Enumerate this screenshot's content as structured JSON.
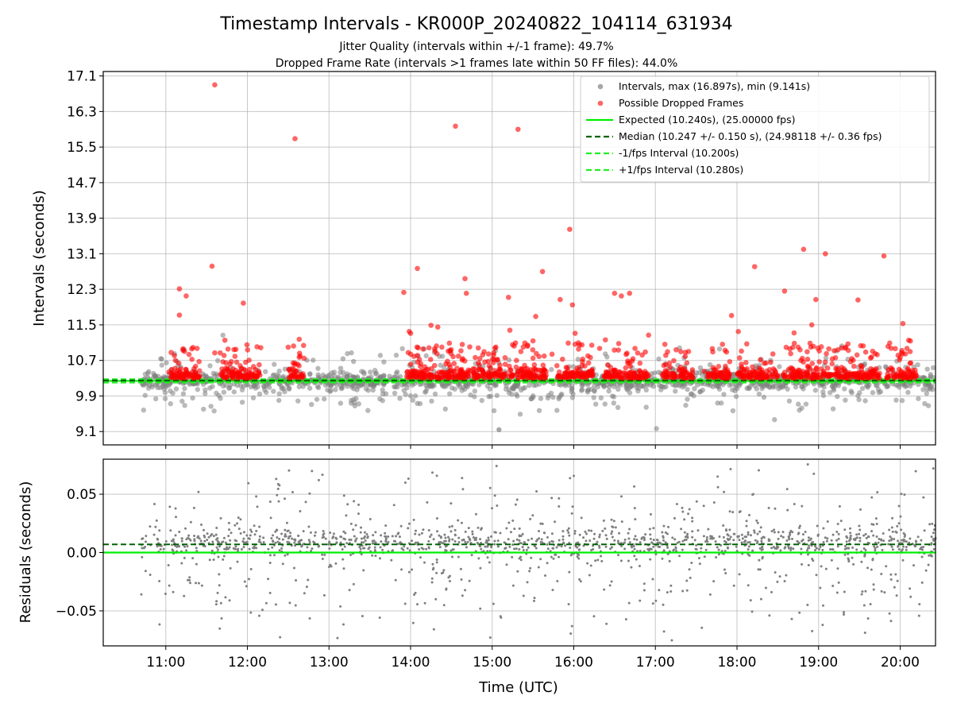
{
  "title": "Timestamp Intervals - KR000P_20240822_104114_631934",
  "subtitle_1": "Jitter Quality (intervals within +/-1 frame): 49.7%",
  "subtitle_2": "Dropped Frame Rate (intervals >1 frames late within 50 FF files): 44.0%",
  "colors": {
    "intervals": "#808080",
    "dropped": "#ff0000",
    "expected": "#00ee00",
    "median": "#006400",
    "fps_bounds": "#22ee22",
    "grid": "#b0b0b0"
  },
  "chart_data": [
    {
      "type": "scatter",
      "panel": "top",
      "ylabel": "Intervals (seconds)",
      "ylim": [
        8.8,
        17.2
      ],
      "yticks": [
        "9.1",
        "9.9",
        "10.7",
        "11.5",
        "12.3",
        "13.1",
        "13.9",
        "14.7",
        "15.5",
        "16.3",
        "17.1"
      ],
      "xlim": [
        "10:14",
        "20:26"
      ],
      "grid": true,
      "legend_placement": "top-right",
      "legend": [
        "Intervals, max (16.897s), min (9.141s)",
        "Possible Dropped Frames",
        "Expected (10.240s), (25.00000 fps)",
        "Median (10.247 +/- 0.150 s), (24.98118 +/- 0.36 fps)",
        "-1/fps Interval (10.200s)",
        "+1/fps Interval (10.280s)"
      ],
      "reference_lines": {
        "expected": 10.24,
        "median": 10.247,
        "minus_1_fps": 10.2,
        "plus_1_fps": 10.28
      },
      "data_range": {
        "start": "10:42",
        "end": "20:26"
      },
      "series": [
        {
          "name": "Intervals, max (16.897s), min (9.141s)",
          "max": 16.897,
          "min": 9.141,
          "distribution": "dense band mostly between 9.4 and 11.0 s"
        },
        {
          "name": "Possible Dropped Frames",
          "points": [
            [
              "11:10",
              11.72
            ],
            [
              "11:10",
              12.31
            ],
            [
              "11:15",
              12.15
            ],
            [
              "11:20",
              10.99
            ],
            [
              "11:23",
              10.97
            ],
            [
              "11:34",
              12.82
            ],
            [
              "11:36",
              10.87
            ],
            [
              "11:40",
              10.87
            ],
            [
              "11:42",
              10.67
            ],
            [
              "11:42",
              10.34
            ],
            [
              "11:36",
              16.9
            ],
            [
              "11:57",
              11.99
            ],
            [
              "12:35",
              15.69
            ],
            [
              "13:55",
              12.23
            ],
            [
              "13:59",
              11.35
            ],
            [
              "14:00",
              11.31
            ],
            [
              "14:05",
              12.77
            ],
            [
              "14:15",
              11.49
            ],
            [
              "14:20",
              11.45
            ],
            [
              "14:23",
              11.0
            ],
            [
              "14:32",
              10.63
            ],
            [
              "14:38",
              10.71
            ],
            [
              "14:33",
              15.97
            ],
            [
              "14:38",
              11.06
            ],
            [
              "14:40",
              12.54
            ],
            [
              "14:41",
              12.21
            ],
            [
              "15:12",
              12.12
            ],
            [
              "15:13",
              11.38
            ],
            [
              "15:19",
              15.9
            ],
            [
              "15:26",
              11.02
            ],
            [
              "15:30",
              11.14
            ],
            [
              "15:37",
              12.7
            ],
            [
              "15:32",
              11.69
            ],
            [
              "15:44",
              10.84
            ],
            [
              "15:50",
              12.07
            ],
            [
              "15:57",
              13.65
            ],
            [
              "15:59",
              11.95
            ],
            [
              "16:01",
              11.31
            ],
            [
              "16:06",
              11.05
            ],
            [
              "16:19",
              10.97
            ],
            [
              "16:30",
              12.21
            ],
            [
              "16:35",
              12.15
            ],
            [
              "16:41",
              12.21
            ],
            [
              "16:45",
              10.97
            ],
            [
              "16:55",
              11.27
            ],
            [
              "17:56",
              11.71
            ],
            [
              "18:01",
              11.35
            ],
            [
              "18:13",
              12.81
            ],
            [
              "18:35",
              12.26
            ],
            [
              "18:42",
              11.32
            ],
            [
              "18:45",
              11.0
            ],
            [
              "18:47",
              10.7
            ],
            [
              "18:49",
              13.2
            ],
            [
              "18:55",
              11.5
            ],
            [
              "18:58",
              12.07
            ],
            [
              "19:05",
              13.1
            ],
            [
              "19:20",
              11.0
            ],
            [
              "19:31",
              11.03
            ],
            [
              "19:29",
              12.06
            ],
            [
              "19:48",
              13.05
            ],
            [
              "20:00",
              10.77
            ],
            [
              "20:02",
              11.53
            ],
            [
              "20:05",
              10.97
            ]
          ]
        }
      ]
    },
    {
      "type": "scatter",
      "panel": "bottom",
      "ylabel": "Residuals (seconds)",
      "xlabel": "Time (UTC)",
      "ylim": [
        -0.08,
        0.08
      ],
      "yticks": [
        "−0.05",
        "0.00",
        "0.05"
      ],
      "xlim": [
        "10:14",
        "20:26"
      ],
      "xticks": [
        "11:00",
        "12:00",
        "13:00",
        "14:00",
        "15:00",
        "16:00",
        "17:00",
        "18:00",
        "19:00",
        "20:00"
      ],
      "grid": true,
      "reference_lines": {
        "zero": 0.0,
        "median_offset": 0.007
      },
      "series": [
        {
          "name": "Residuals",
          "distribution": "points scattered between -0.08 and 0.08 s, concentrated near 0.00-0.02 s"
        }
      ]
    }
  ]
}
